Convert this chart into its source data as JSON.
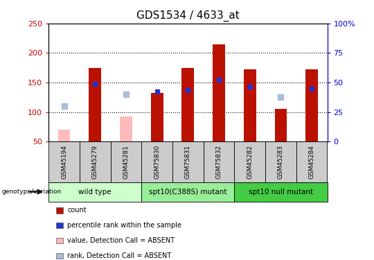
{
  "title": "GDS1534 / 4633_at",
  "samples": [
    "GSM45194",
    "GSM45279",
    "GSM45281",
    "GSM75830",
    "GSM75831",
    "GSM75832",
    "GSM45282",
    "GSM45283",
    "GSM45284"
  ],
  "count_values": [
    null,
    175,
    null,
    133,
    175,
    215,
    172,
    105,
    172
  ],
  "count_absent": [
    70,
    null,
    93,
    null,
    null,
    null,
    null,
    null,
    null
  ],
  "rank_values": [
    null,
    148,
    null,
    135,
    137,
    155,
    143,
    null,
    140
  ],
  "rank_absent": [
    110,
    null,
    130,
    null,
    null,
    null,
    null,
    125,
    null
  ],
  "groups": [
    {
      "label": "wild type",
      "start": 0,
      "end": 3,
      "color": "#ccffcc"
    },
    {
      "label": "spt10(C388S) mutant",
      "start": 3,
      "end": 6,
      "color": "#99ee99"
    },
    {
      "label": "spt10 null mutant",
      "start": 6,
      "end": 9,
      "color": "#44cc44"
    }
  ],
  "ymin": 50,
  "ymax": 250,
  "yticks_left": [
    50,
    100,
    150,
    200,
    250
  ],
  "yticks_right": [
    0,
    25,
    50,
    75,
    100
  ],
  "bar_color": "#bb1100",
  "bar_absent_color": "#ffbbbb",
  "rank_color": "#2233cc",
  "rank_absent_color": "#aabbdd",
  "left_tick_color": "#cc0000",
  "right_tick_color": "#0000cc",
  "bar_width": 0.4,
  "legend_items": [
    {
      "color": "#bb1100",
      "label": "count",
      "style": "square"
    },
    {
      "color": "#2233cc",
      "label": "percentile rank within the sample",
      "style": "square"
    },
    {
      "color": "#ffbbbb",
      "label": "value, Detection Call = ABSENT",
      "style": "square"
    },
    {
      "color": "#aabbdd",
      "label": "rank, Detection Call = ABSENT",
      "style": "square"
    }
  ]
}
